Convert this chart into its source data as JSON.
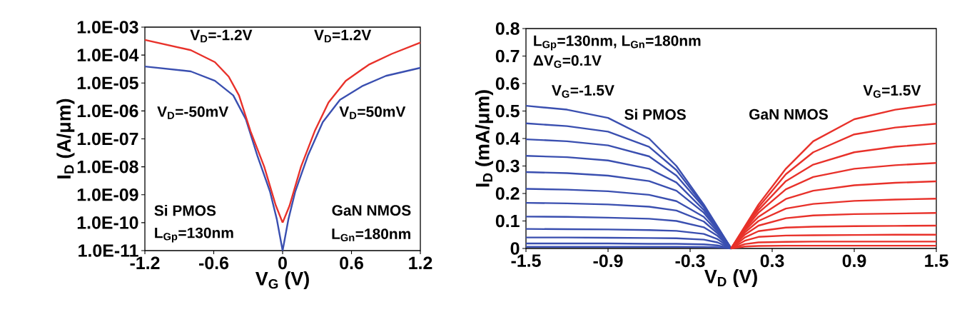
{
  "chart_data": [
    {
      "type": "line",
      "xlabel": "V$_{G}$ (V)",
      "ylabel": "I$_{D}$ (A/μm)",
      "log": "y",
      "xlim": [
        -1.2,
        1.2
      ],
      "ylim": [
        1e-11,
        0.001
      ],
      "xticks": [
        {
          "value": -1.2,
          "label": "-1.2"
        },
        {
          "value": -0.6,
          "label": "-0.6"
        },
        0,
        {
          "value": 0.6,
          "label": "0.6"
        },
        {
          "value": 1.2,
          "label": "1.2"
        }
      ],
      "yticks": [
        {
          "value": 1e-11,
          "label": "1.0E-11"
        },
        {
          "value": 1e-10,
          "label": "1.0E-10"
        },
        {
          "value": 1e-09,
          "label": "1.0E-09"
        },
        {
          "value": 1e-08,
          "label": "1.0E-08"
        },
        {
          "value": 1e-07,
          "label": "1.0E-07"
        },
        {
          "value": 1e-06,
          "label": "1.0E-06"
        },
        {
          "value": 1e-05,
          "label": "1.0E-05"
        },
        {
          "value": 0.0001,
          "label": "1.0E-04"
        },
        {
          "value": 0.001,
          "label": "1.0E-03"
        }
      ],
      "series": [
        {
          "color": "#3a4fb0",
          "x": [
            -1.2,
            -0.8,
            -0.59,
            -0.43,
            -0.32,
            -0.22,
            -0.11,
            -0.05,
            0
          ],
          "values": [
            3.9e-05,
            2.6e-05,
            1.2e-05,
            3.6e-06,
            5e-07,
            2.5e-08,
            1.3e-09,
            1.3e-10,
            1e-11
          ]
        },
        {
          "color": "#e8312a",
          "x": [
            -1.2,
            -0.8,
            -0.59,
            -0.47,
            -0.38,
            -0.28,
            -0.16,
            -0.06,
            0
          ],
          "values": [
            0.00035,
            0.00015,
            5.6e-05,
            1.7e-05,
            3.6e-06,
            1.9e-07,
            1e-08,
            4.2e-10,
            1e-10
          ]
        },
        {
          "color": "#3a4fb0",
          "x": [
            0,
            0.05,
            0.11,
            0.22,
            0.35,
            0.5,
            0.7,
            0.9,
            1.2
          ],
          "values": [
            1e-11,
            1.3e-10,
            1.3e-09,
            2.5e-08,
            4e-07,
            2.5e-06,
            8e-06,
            1.8e-05,
            3.5e-05
          ]
        },
        {
          "color": "#e8312a",
          "x": [
            0,
            0.06,
            0.16,
            0.28,
            0.4,
            0.55,
            0.75,
            0.95,
            1.2
          ],
          "values": [
            1e-10,
            4e-10,
            1e-08,
            1.9e-07,
            2e-06,
            1.2e-05,
            4.5e-05,
            0.00011,
            0.00028
          ]
        }
      ],
      "annotations": [
        "V$_{D}$=-1.2V",
        "V$_{D}$=1.2V",
        "V$_{D}$=-50mV",
        "V$_{D}$=50mV",
        "Si PMOS",
        "L$_{Gp}$=130nm",
        "GaN NMOS",
        "L$_{Gn}$=180nm"
      ]
    },
    {
      "type": "line",
      "xlabel": "V$_{D}$ (V)",
      "ylabel": "I$_{D}$ (mA/μm)",
      "xlim": [
        -1.5,
        1.5
      ],
      "ylim": [
        0,
        0.8
      ],
      "xticks": [
        {
          "value": -1.5,
          "label": "-1.5"
        },
        {
          "value": -0.9,
          "label": "-0.9"
        },
        {
          "value": -0.3,
          "label": "-0.3"
        },
        {
          "value": 0.3,
          "label": "0.3"
        },
        {
          "value": 0.9,
          "label": "0.9"
        },
        {
          "value": 1.5,
          "label": "1.5"
        }
      ],
      "yticks": [
        0,
        {
          "value": 0.1,
          "label": "0.1"
        },
        {
          "value": 0.2,
          "label": "0.2"
        },
        {
          "value": 0.3,
          "label": "0.3"
        },
        {
          "value": 0.4,
          "label": "0.4"
        },
        {
          "value": 0.5,
          "label": "0.5"
        },
        {
          "value": 0.6,
          "label": "0.6"
        },
        {
          "value": 0.7,
          "label": "0.7"
        },
        {
          "value": 0.8,
          "label": "0.8"
        }
      ],
      "series": [
        {
          "color": "#3a4fb0",
          "x": [
            -1.5,
            -1.2,
            -0.9,
            -0.6,
            -0.4,
            -0.2,
            -0.1,
            0
          ],
          "values": [
            0.519,
            0.505,
            0.475,
            0.4,
            0.3,
            0.16,
            0.08,
            0
          ]
        },
        {
          "color": "#3a4fb0",
          "x": [
            -1.5,
            -1.2,
            -0.9,
            -0.6,
            -0.4,
            -0.2,
            -0.1,
            0
          ],
          "values": [
            0.455,
            0.445,
            0.425,
            0.37,
            0.285,
            0.155,
            0.078,
            0
          ]
        },
        {
          "color": "#3a4fb0",
          "x": [
            -1.5,
            -1.2,
            -0.9,
            -0.6,
            -0.4,
            -0.2,
            -0.1,
            0
          ],
          "values": [
            0.397,
            0.39,
            0.375,
            0.335,
            0.265,
            0.15,
            0.076,
            0
          ]
        },
        {
          "color": "#3a4fb0",
          "x": [
            -1.5,
            -1.2,
            -0.9,
            -0.6,
            -0.4,
            -0.2,
            -0.1,
            0
          ],
          "values": [
            0.337,
            0.332,
            0.32,
            0.29,
            0.24,
            0.14,
            0.072,
            0
          ]
        },
        {
          "color": "#3a4fb0",
          "x": [
            -1.5,
            -1.2,
            -0.9,
            -0.6,
            -0.4,
            -0.2,
            -0.1,
            0
          ],
          "values": [
            0.278,
            0.274,
            0.265,
            0.245,
            0.21,
            0.13,
            0.068,
            0
          ]
        },
        {
          "color": "#3a4fb0",
          "x": [
            -1.5,
            -1.2,
            -0.9,
            -0.6,
            -0.4,
            -0.2,
            -0.1,
            0
          ],
          "values": [
            0.217,
            0.214,
            0.208,
            0.195,
            0.172,
            0.115,
            0.062,
            0
          ]
        },
        {
          "color": "#3a4fb0",
          "x": [
            -1.5,
            -1.2,
            -0.9,
            -0.6,
            -0.4,
            -0.2,
            -0.1,
            0
          ],
          "values": [
            0.166,
            0.164,
            0.16,
            0.152,
            0.138,
            0.098,
            0.055,
            0
          ]
        },
        {
          "color": "#3a4fb0",
          "x": [
            -1.5,
            -1.2,
            -0.9,
            -0.6,
            -0.4,
            -0.2,
            -0.1,
            0
          ],
          "values": [
            0.116,
            0.115,
            0.112,
            0.108,
            0.1,
            0.077,
            0.046,
            0
          ]
        },
        {
          "color": "#3a4fb0",
          "x": [
            -1.5,
            -1.2,
            -0.9,
            -0.6,
            -0.4,
            -0.2,
            -0.1,
            0
          ],
          "values": [
            0.071,
            0.07,
            0.069,
            0.067,
            0.064,
            0.053,
            0.034,
            0
          ]
        },
        {
          "color": "#3a4fb0",
          "x": [
            -1.5,
            -1.2,
            -0.9,
            -0.6,
            -0.4,
            -0.2,
            -0.1,
            0
          ],
          "values": [
            0.04,
            0.04,
            0.039,
            0.038,
            0.037,
            0.032,
            0.022,
            0
          ]
        },
        {
          "color": "#3a4fb0",
          "x": [
            -1.5,
            -1.2,
            -0.9,
            -0.6,
            -0.4,
            -0.2,
            -0.1,
            0
          ],
          "values": [
            0.018,
            0.018,
            0.018,
            0.017,
            0.017,
            0.015,
            0.011,
            0
          ]
        },
        {
          "color": "#3a4fb0",
          "x": [
            -1.5,
            -1.2,
            -0.9,
            -0.6,
            -0.4,
            -0.2,
            -0.1,
            0
          ],
          "values": [
            0.006,
            0.006,
            0.006,
            0.006,
            0.006,
            0.005,
            0.004,
            0
          ]
        },
        {
          "color": "#e8312a",
          "x": [
            0,
            0.1,
            0.2,
            0.4,
            0.6,
            0.9,
            1.2,
            1.5
          ],
          "values": [
            0,
            0.08,
            0.16,
            0.29,
            0.39,
            0.47,
            0.505,
            0.525
          ]
        },
        {
          "color": "#e8312a",
          "x": [
            0,
            0.1,
            0.2,
            0.4,
            0.6,
            0.9,
            1.2,
            1.5
          ],
          "values": [
            0,
            0.078,
            0.15,
            0.27,
            0.35,
            0.415,
            0.44,
            0.454
          ]
        },
        {
          "color": "#e8312a",
          "x": [
            0,
            0.1,
            0.2,
            0.4,
            0.6,
            0.9,
            1.2,
            1.5
          ],
          "values": [
            0,
            0.075,
            0.14,
            0.245,
            0.305,
            0.35,
            0.37,
            0.382
          ]
        },
        {
          "color": "#e8312a",
          "x": [
            0,
            0.1,
            0.2,
            0.4,
            0.6,
            0.9,
            1.2,
            1.5
          ],
          "values": [
            0,
            0.07,
            0.13,
            0.215,
            0.26,
            0.29,
            0.303,
            0.311
          ]
        },
        {
          "color": "#e8312a",
          "x": [
            0,
            0.1,
            0.2,
            0.4,
            0.6,
            0.9,
            1.2,
            1.5
          ],
          "values": [
            0,
            0.065,
            0.115,
            0.18,
            0.21,
            0.23,
            0.239,
            0.244
          ]
        },
        {
          "color": "#e8312a",
          "x": [
            0,
            0.1,
            0.2,
            0.4,
            0.6,
            0.9,
            1.2,
            1.5
          ],
          "values": [
            0,
            0.058,
            0.1,
            0.145,
            0.162,
            0.173,
            0.178,
            0.181
          ]
        },
        {
          "color": "#e8312a",
          "x": [
            0,
            0.1,
            0.2,
            0.4,
            0.6,
            0.9,
            1.2,
            1.5
          ],
          "values": [
            0,
            0.05,
            0.083,
            0.11,
            0.12,
            0.125,
            0.127,
            0.129
          ]
        },
        {
          "color": "#e8312a",
          "x": [
            0,
            0.1,
            0.2,
            0.4,
            0.6,
            0.9,
            1.2,
            1.5
          ],
          "values": [
            0,
            0.04,
            0.063,
            0.076,
            0.079,
            0.081,
            0.082,
            0.083
          ]
        },
        {
          "color": "#e8312a",
          "x": [
            0,
            0.1,
            0.2,
            0.4,
            0.6,
            0.9,
            1.2,
            1.5
          ],
          "values": [
            0,
            0.028,
            0.042,
            0.047,
            0.048,
            0.049,
            0.05,
            0.05
          ]
        },
        {
          "color": "#e8312a",
          "x": [
            0,
            0.1,
            0.2,
            0.4,
            0.6,
            0.9,
            1.2,
            1.5
          ],
          "values": [
            0,
            0.016,
            0.022,
            0.024,
            0.025,
            0.025,
            0.025,
            0.025
          ]
        },
        {
          "color": "#e8312a",
          "x": [
            0,
            0.1,
            0.2,
            0.4,
            0.6,
            0.9,
            1.2,
            1.5
          ],
          "values": [
            0,
            0.007,
            0.009,
            0.01,
            0.01,
            0.01,
            0.01,
            0.01
          ]
        }
      ],
      "annotations": [
        "L$_{Gp}$=130nm, L$_{Gn}$=180nm",
        "ΔV$_{G}$=0.1V",
        "V$_{G}$=-1.5V",
        "Si PMOS",
        "GaN NMOS",
        "V$_{G}$=1.5V"
      ]
    }
  ]
}
